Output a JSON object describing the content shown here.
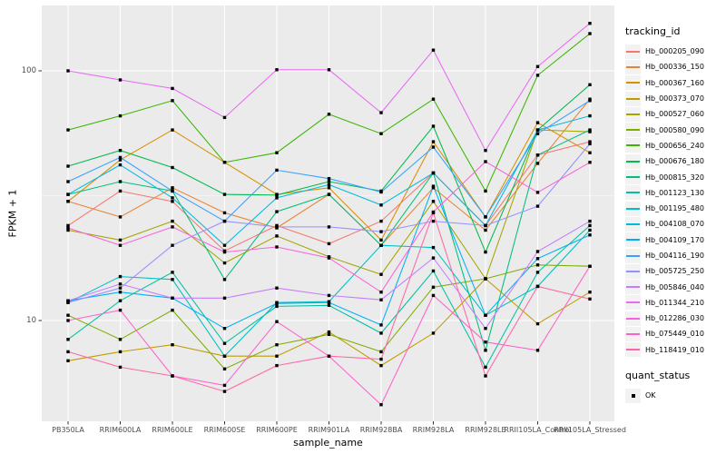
{
  "chart_data": {
    "type": "line",
    "title": "",
    "xlabel": "sample_name",
    "ylabel": "FPKM + 1",
    "y_scale": "log10",
    "y_ticks": [
      100,
      10
    ],
    "ylim": [
      4.3,
      170
    ],
    "grid": true,
    "panel_bg": "#EBEBEB",
    "grid_color": "#FFFFFF",
    "point_marker": {
      "shape": "square",
      "color": "#000000"
    },
    "legend_position": "right",
    "legend_title": "tracking_id",
    "quant_legend": {
      "title": "quant_status",
      "items": [
        {
          "label": "OK",
          "shape": "square",
          "color": "#000000"
        }
      ]
    },
    "categories": [
      "PB350LA",
      "RRIM600LA",
      "RRIM600LE",
      "RRIM600SE",
      "RRIM600PE",
      "RRIM901LA",
      "RRIM928BA",
      "RRIM928LA",
      "RRIM928LE",
      "RRII105LA_Control",
      "RRII105LA_Stressed"
    ],
    "series": [
      {
        "name": "Hb_000205_090",
        "color": "#F8766D",
        "values": [
          24,
          33,
          30,
          19,
          24,
          20.3,
          25,
          39,
          24,
          46,
          52
        ]
      },
      {
        "name": "Hb_000336_150",
        "color": "#EA8331",
        "values": [
          30,
          26,
          34,
          27,
          23.5,
          32,
          20,
          34,
          23,
          42.6,
          77
        ]
      },
      {
        "name": "Hb_000367_160",
        "color": "#D89000",
        "values": [
          30,
          44,
          58,
          43,
          32,
          34,
          21,
          52,
          26,
          62,
          47
        ]
      },
      {
        "name": "Hb_000373_070",
        "color": "#C09B00",
        "values": [
          6.9,
          7.5,
          8,
          7.2,
          7.2,
          9,
          6.6,
          8.9,
          14.7,
          9.7,
          13
        ]
      },
      {
        "name": "Hb_000527_060",
        "color": "#A3A500",
        "values": [
          23,
          21,
          25,
          17,
          21.8,
          18,
          15.3,
          30,
          14.7,
          58,
          57
        ]
      },
      {
        "name": "Hb_000580_090",
        "color": "#7CAE00",
        "values": [
          10.5,
          8.4,
          11,
          6.4,
          8,
          8.8,
          7.5,
          13.6,
          14.7,
          16.7,
          16.5
        ]
      },
      {
        "name": "Hb_000656_240",
        "color": "#39B600",
        "values": [
          58,
          66,
          76,
          43,
          47,
          67,
          56,
          77,
          33,
          96,
          141
        ]
      },
      {
        "name": "Hb_000676_180",
        "color": "#00BB4E",
        "values": [
          41.5,
          48,
          41,
          32,
          31.8,
          36,
          33,
          60,
          18.8,
          58,
          88
        ]
      },
      {
        "name": "Hb_000815_320",
        "color": "#00BF7D",
        "values": [
          32,
          36,
          33,
          14.6,
          27.3,
          32,
          20,
          39,
          7.6,
          46,
          58
        ]
      },
      {
        "name": "Hb_001123_130",
        "color": "#00C1A3",
        "values": [
          8.4,
          12,
          15.6,
          8.1,
          11.4,
          11.5,
          8.9,
          15.8,
          6.5,
          15.6,
          24
        ]
      },
      {
        "name": "Hb_001195_480",
        "color": "#00BFC4",
        "values": [
          11.8,
          15,
          14.6,
          7.2,
          11.8,
          11.9,
          20,
          19.6,
          10.5,
          13.7,
          23
        ]
      },
      {
        "name": "Hb_004108_070",
        "color": "#00BAE0",
        "values": [
          32,
          42,
          31,
          20,
          31,
          35,
          29,
          39,
          24,
          58,
          66
        ]
      },
      {
        "name": "Hb_004109_170",
        "color": "#00B0F6",
        "values": [
          12,
          13,
          12.3,
          9.3,
          11.7,
          11.8,
          9.6,
          34.5,
          10.5,
          17.7,
          22
        ]
      },
      {
        "name": "Hb_004116_190",
        "color": "#35A2FF",
        "values": [
          36,
          45,
          33,
          25,
          40,
          37,
          32.7,
          49.5,
          26,
          56,
          76
        ]
      },
      {
        "name": "Hb_005725_250",
        "color": "#9590FF",
        "values": [
          11.8,
          13.5,
          20,
          25,
          23.7,
          23.7,
          22.7,
          25,
          24,
          28.7,
          51
        ]
      },
      {
        "name": "Hb_005846_040",
        "color": "#C77CFF",
        "values": [
          12,
          14,
          12.3,
          12.3,
          13.5,
          12.6,
          12.1,
          17.8,
          9.3,
          18.9,
          25
        ]
      },
      {
        "name": "Hb_011344_210",
        "color": "#E76BF3",
        "values": [
          100,
          92,
          85,
          65,
          101,
          101,
          68,
          121,
          48,
          104,
          155
        ]
      },
      {
        "name": "Hb_012286_030",
        "color": "#FA62DB",
        "values": [
          23.5,
          20,
          23.7,
          18.8,
          19.7,
          17.8,
          13,
          27.2,
          43.3,
          32.6,
          43
        ]
      },
      {
        "name": "Hb_075449_010",
        "color": "#FF61CC",
        "values": [
          10,
          11,
          6,
          5.5,
          9.9,
          7.2,
          4.6,
          12.6,
          8.2,
          7.6,
          16.5
        ]
      },
      {
        "name": "Hb_118419_010",
        "color": "#FF67A4",
        "values": [
          7.5,
          6.5,
          6,
          5.2,
          6.6,
          7.2,
          7,
          27,
          6,
          13.7,
          12.2
        ]
      }
    ]
  }
}
